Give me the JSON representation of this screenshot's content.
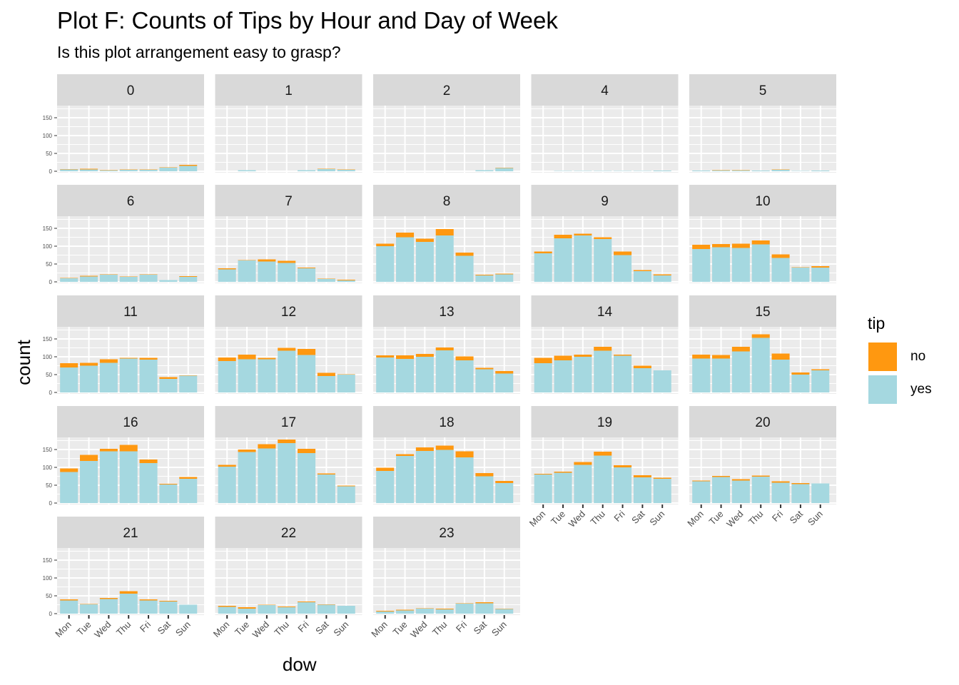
{
  "chart_data": {
    "type": "bar",
    "stacked": true,
    "faceted": true,
    "title": "Plot F: Counts of Tips by Hour and Day of Week",
    "subtitle": "Is this plot arrangement easy to grasp?",
    "xlabel": "dow",
    "ylabel": "count",
    "ylim": [
      0,
      180
    ],
    "yticks": [
      0,
      50,
      100,
      150
    ],
    "categories": [
      "Mon",
      "Tue",
      "Wed",
      "Thu",
      "Fri",
      "Sat",
      "Sun"
    ],
    "legend": {
      "title": "tip",
      "position": "right",
      "entries": [
        "no",
        "yes"
      ]
    },
    "colors": {
      "no": "#ff9810",
      "yes": "#a5d8e0"
    },
    "facets": [
      {
        "label": "0",
        "yes": [
          5,
          5,
          2,
          4,
          4,
          10,
          15
        ],
        "no": [
          1,
          2,
          1,
          1,
          1,
          1,
          3
        ]
      },
      {
        "label": "1",
        "yes": [
          0,
          3,
          0,
          0,
          3,
          6,
          4
        ],
        "no": [
          0,
          0,
          0,
          0,
          0,
          1,
          1
        ]
      },
      {
        "label": "2",
        "yes": [
          0,
          0,
          0,
          0,
          0,
          3,
          9
        ],
        "no": [
          0,
          0,
          0,
          0,
          0,
          0,
          1
        ]
      },
      {
        "label": "4",
        "yes": [
          0,
          1,
          1,
          1,
          1,
          1,
          2
        ],
        "no": [
          0,
          0,
          0,
          0,
          0,
          0,
          0
        ]
      },
      {
        "label": "5",
        "yes": [
          2,
          2,
          2,
          2,
          4,
          1,
          2
        ],
        "no": [
          0,
          1,
          1,
          0,
          1,
          0,
          0
        ]
      },
      {
        "label": "6",
        "yes": [
          10,
          15,
          20,
          14,
          20,
          5,
          14
        ],
        "no": [
          1,
          2,
          1,
          1,
          1,
          0,
          2
        ]
      },
      {
        "label": "7",
        "yes": [
          35,
          60,
          57,
          53,
          38,
          8,
          4
        ],
        "no": [
          3,
          1,
          6,
          6,
          2,
          1,
          2
        ]
      },
      {
        "label": "8",
        "yes": [
          100,
          125,
          112,
          130,
          73,
          18,
          21
        ],
        "no": [
          7,
          13,
          9,
          18,
          9,
          2,
          2
        ]
      },
      {
        "label": "9",
        "yes": [
          80,
          122,
          130,
          120,
          75,
          30,
          18
        ],
        "no": [
          5,
          10,
          5,
          5,
          10,
          3,
          3
        ]
      },
      {
        "label": "10",
        "yes": [
          92,
          97,
          95,
          105,
          67,
          40,
          40
        ],
        "no": [
          12,
          9,
          12,
          11,
          10,
          1,
          4
        ]
      },
      {
        "label": "11",
        "yes": [
          70,
          75,
          83,
          95,
          92,
          38,
          47
        ],
        "no": [
          12,
          8,
          10,
          2,
          5,
          5,
          1
        ]
      },
      {
        "label": "12",
        "yes": [
          88,
          93,
          93,
          117,
          105,
          46,
          50
        ],
        "no": [
          10,
          13,
          4,
          8,
          17,
          9,
          1
        ]
      },
      {
        "label": "13",
        "yes": [
          98,
          94,
          100,
          118,
          90,
          65,
          53
        ],
        "no": [
          6,
          10,
          8,
          8,
          11,
          4,
          7
        ]
      },
      {
        "label": "14",
        "yes": [
          82,
          90,
          100,
          117,
          103,
          68,
          62
        ],
        "no": [
          15,
          13,
          6,
          11,
          3,
          7,
          0
        ]
      },
      {
        "label": "15",
        "yes": [
          95,
          95,
          115,
          153,
          92,
          50,
          62
        ],
        "no": [
          11,
          10,
          13,
          10,
          17,
          6,
          3
        ]
      },
      {
        "label": "16",
        "yes": [
          87,
          118,
          145,
          145,
          112,
          52,
          68
        ],
        "no": [
          10,
          17,
          7,
          18,
          10,
          2,
          5
        ]
      },
      {
        "label": "17",
        "yes": [
          102,
          143,
          153,
          168,
          140,
          80,
          47
        ],
        "no": [
          5,
          7,
          12,
          10,
          12,
          3,
          2
        ]
      },
      {
        "label": "18",
        "yes": [
          90,
          132,
          146,
          149,
          128,
          75,
          56
        ],
        "no": [
          9,
          5,
          10,
          12,
          17,
          9,
          6
        ]
      },
      {
        "label": "19",
        "yes": [
          80,
          85,
          107,
          133,
          100,
          72,
          68
        ],
        "no": [
          2,
          3,
          8,
          11,
          6,
          6,
          3
        ]
      },
      {
        "label": "20",
        "yes": [
          61,
          73,
          63,
          74,
          57,
          53,
          55
        ],
        "no": [
          2,
          3,
          4,
          3,
          4,
          3,
          0
        ]
      },
      {
        "label": "21",
        "yes": [
          37,
          26,
          41,
          56,
          37,
          34,
          25
        ],
        "no": [
          3,
          1,
          3,
          7,
          3,
          2,
          0
        ]
      },
      {
        "label": "22",
        "yes": [
          19,
          14,
          24,
          18,
          32,
          25,
          22
        ],
        "no": [
          3,
          4,
          1,
          2,
          2,
          1,
          0
        ]
      },
      {
        "label": "23",
        "yes": [
          6,
          9,
          14,
          12,
          28,
          29,
          13
        ],
        "no": [
          2,
          2,
          1,
          2,
          1,
          3,
          1
        ]
      }
    ]
  }
}
